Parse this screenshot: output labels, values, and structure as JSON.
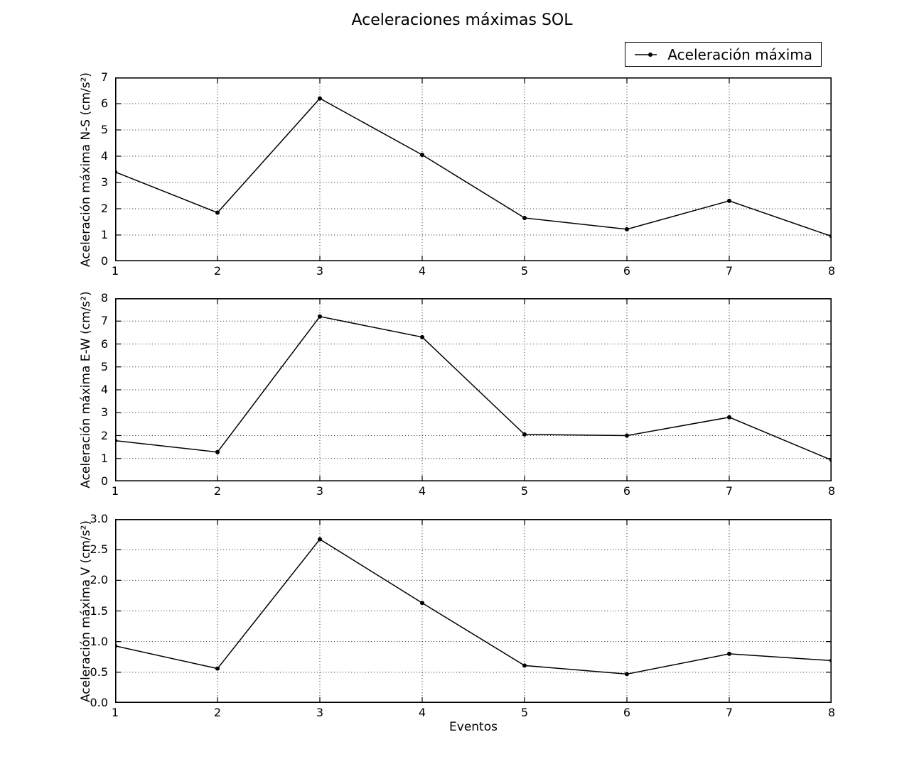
{
  "chart_data": {
    "type": "line",
    "title": "Aceleraciones máximas SOL",
    "xlabel": "Eventos",
    "legend_label": "Aceleración máxima",
    "legend_position": "upper right, above axes",
    "grid": true,
    "grid_style": "dotted",
    "line_color": "#000000",
    "marker": "dot",
    "x": [
      1,
      2,
      3,
      4,
      5,
      6,
      7,
      8
    ],
    "xlim": [
      1,
      8
    ],
    "subplots": [
      {
        "ylabel": "Aceleración máxima N-S (cm/s²)",
        "ylim": [
          0,
          7
        ],
        "yticks": [
          0,
          1,
          2,
          3,
          4,
          5,
          6,
          7
        ],
        "ytick_labels": [
          "0",
          "1",
          "2",
          "3",
          "4",
          "5",
          "6",
          "7"
        ],
        "values": [
          3.4,
          1.85,
          6.2,
          4.05,
          1.65,
          1.22,
          2.3,
          0.95
        ]
      },
      {
        "ylabel": "Aceleración máxima E-W (cm/s²)",
        "ylim": [
          0,
          8
        ],
        "yticks": [
          0,
          1,
          2,
          3,
          4,
          5,
          6,
          7,
          8
        ],
        "ytick_labels": [
          "0",
          "1",
          "2",
          "3",
          "4",
          "5",
          "6",
          "7",
          "8"
        ],
        "values": [
          1.78,
          1.28,
          7.2,
          6.3,
          2.05,
          2.0,
          2.8,
          0.93
        ]
      },
      {
        "ylabel": "Aceleración máxima V (cm/s²)",
        "ylim": [
          0,
          3
        ],
        "yticks": [
          0,
          0.5,
          1,
          1.5,
          2,
          2.5,
          3
        ],
        "ytick_labels": [
          "0.0",
          "0.5",
          "1.0",
          "1.5",
          "2.0",
          "2.5",
          "3.0"
        ],
        "values": [
          0.93,
          0.56,
          2.67,
          1.63,
          0.61,
          0.47,
          0.8,
          0.69
        ]
      }
    ]
  }
}
